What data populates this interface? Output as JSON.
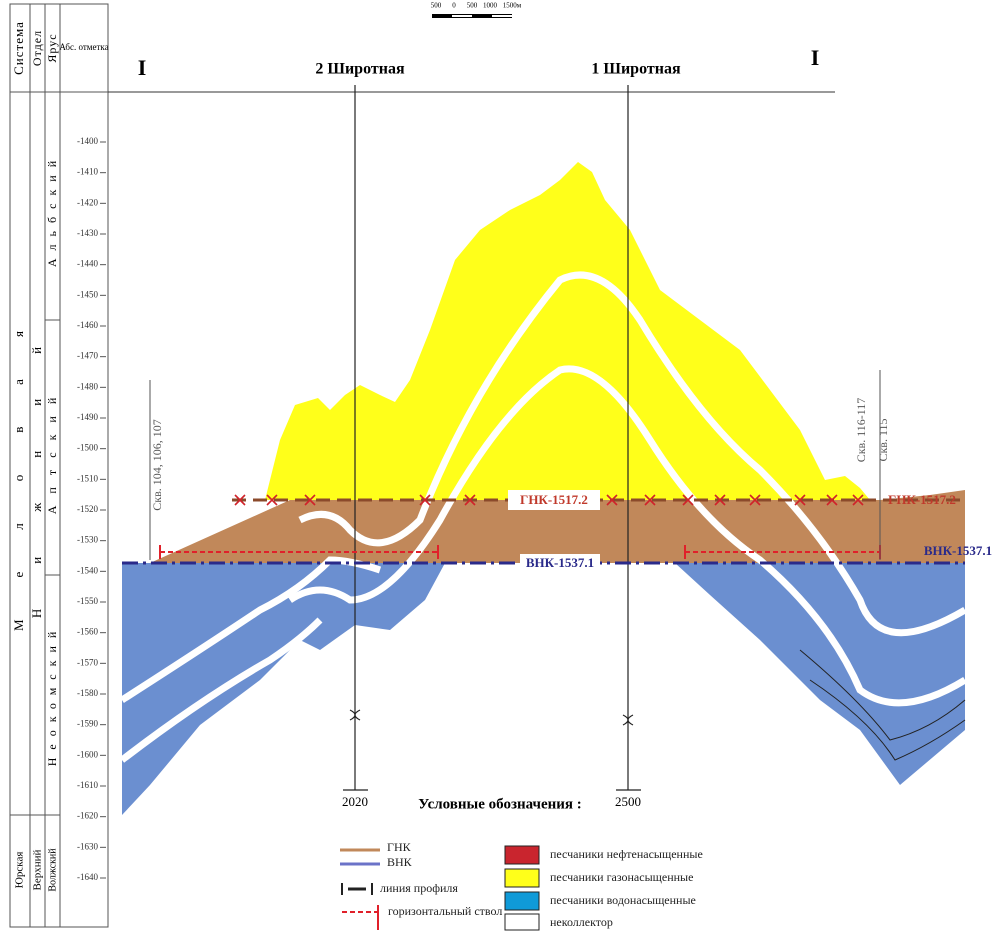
{
  "scale_bar": {
    "labels": [
      "500",
      "0",
      "500",
      "1000",
      "1500м"
    ]
  },
  "column_headers": {
    "system": "Система",
    "division": "Отдел",
    "stage": "Ярус",
    "elevation": "Абс. отметка"
  },
  "stratigraphy": {
    "systems": [
      "Меловая",
      "Юрская"
    ],
    "divisions": [
      "Нижний",
      "Верхний"
    ],
    "stages": [
      "Альбский",
      "Аптский",
      "Неокомский",
      "Волжский"
    ]
  },
  "depth_axis": {
    "ticks": [
      -1400,
      -1410,
      -1420,
      -1430,
      -1440,
      -1450,
      -1460,
      -1470,
      -1480,
      -1490,
      -1500,
      -1510,
      -1520,
      -1530,
      -1540,
      -1550,
      -1560,
      -1570,
      -1580,
      -1590,
      -1600,
      -1610,
      -1620,
      -1630,
      -1640
    ]
  },
  "section": {
    "start_label": "I",
    "end_label": "I",
    "profiles": [
      "2 Широтная",
      "1 Широтная"
    ],
    "profile_marks": [
      "2020",
      "2500"
    ]
  },
  "contacts": {
    "gnk": "ГНК-1517.2",
    "vnk": "ВНК-1537.1"
  },
  "wells": [
    "Скв. 104, 106, 107",
    "Скв. 116-117",
    "Скв. 115"
  ],
  "legend": {
    "title": "Условные обозначения :",
    "gnk": "ГНК",
    "vnk": "ВНК",
    "profile_line": "линия профиля",
    "horizontal_bore": "горизонтальный ствол",
    "fills": [
      "песчаники нефтенасыщенные",
      "песчаники газонасыщенные",
      "песчаники водонасыщенные",
      "неколлектор"
    ]
  }
}
